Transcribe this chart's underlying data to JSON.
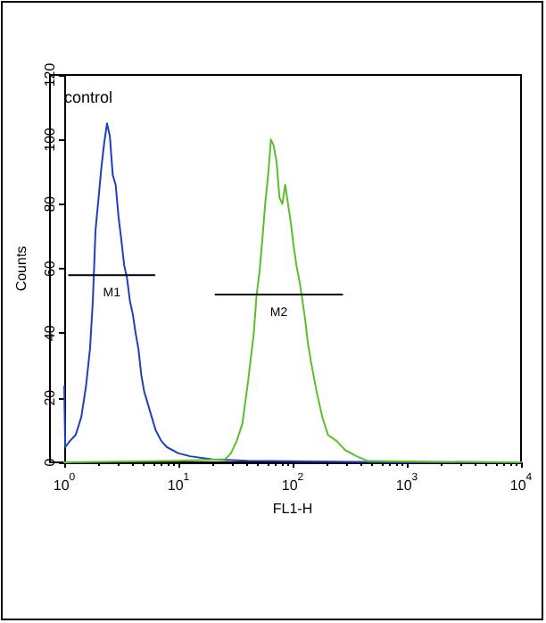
{
  "chart_data": {
    "type": "line",
    "xlabel": "FL1-H",
    "ylabel": "Counts",
    "log": "x",
    "grid": false,
    "legend": false,
    "marker": "none",
    "xlim": [
      1,
      10000
    ],
    "ylim": [
      0,
      120
    ],
    "xticks": [
      {
        "value": 1,
        "label": "10$^{0}$"
      },
      {
        "value": 10,
        "label": "10$^{1}$"
      },
      {
        "value": 100,
        "label": "10$^{2}$"
      },
      {
        "value": 1000,
        "label": "10$^{3}$"
      },
      {
        "value": 10000,
        "label": "10$^{4}$"
      }
    ],
    "yticks": [
      0,
      20,
      40,
      60,
      80,
      100,
      120
    ],
    "annotations": [
      "control"
    ],
    "series": [
      {
        "color": "#1f3fbf",
        "x": [
          1,
          1.02,
          1.12,
          1.26,
          1.41,
          1.55,
          1.68,
          1.78,
          1.88,
          2.0,
          2.11,
          2.24,
          2.37,
          2.51,
          2.66,
          2.82,
          2.99,
          3.16,
          3.35,
          3.55,
          3.76,
          3.98,
          4.22,
          4.47,
          4.73,
          5.01,
          5.62,
          6.31,
          7.08,
          7.94,
          10,
          12.6,
          20,
          40,
          1000,
          10000
        ],
        "values": [
          23.5,
          4.7,
          6.6,
          8.5,
          14,
          23.5,
          35,
          50,
          72,
          82,
          91,
          99,
          105,
          101,
          89,
          86,
          76,
          69,
          61,
          57,
          50,
          46,
          40,
          35,
          27,
          22,
          16,
          10,
          6.6,
          4.7,
          2.8,
          1.9,
          0.9,
          0.5,
          0,
          0
        ]
      },
      {
        "color": "#5cbf2a",
        "x": [
          1,
          10,
          25.7,
          28.8,
          32.4,
          36.3,
          40.7,
          45.7,
          48.4,
          51.3,
          54.3,
          57.5,
          61,
          64.6,
          68.4,
          72.4,
          76.7,
          81.3,
          86.1,
          91.2,
          96.6,
          102,
          108,
          115,
          122,
          129,
          136,
          145,
          162,
          182,
          204,
          243,
          288,
          363,
          457,
          10000
        ],
        "values": [
          0,
          0.5,
          1,
          2.8,
          6.6,
          12,
          25,
          40,
          52,
          59,
          69,
          80,
          89,
          100,
          98,
          93,
          82,
          80,
          86,
          80,
          74,
          67,
          61,
          56,
          50,
          44,
          37,
          31,
          22,
          14,
          8.5,
          6.6,
          3.8,
          1.9,
          0.4,
          0
        ]
      },
      {
        "name": "M1",
        "color": "#000000",
        "x": [
          1.1,
          6.17
        ],
        "values": [
          58,
          58
        ]
      },
      {
        "name": "M2",
        "color": "#000000",
        "x": [
          21.1,
          272
        ],
        "values": [
          52,
          52
        ]
      }
    ]
  }
}
